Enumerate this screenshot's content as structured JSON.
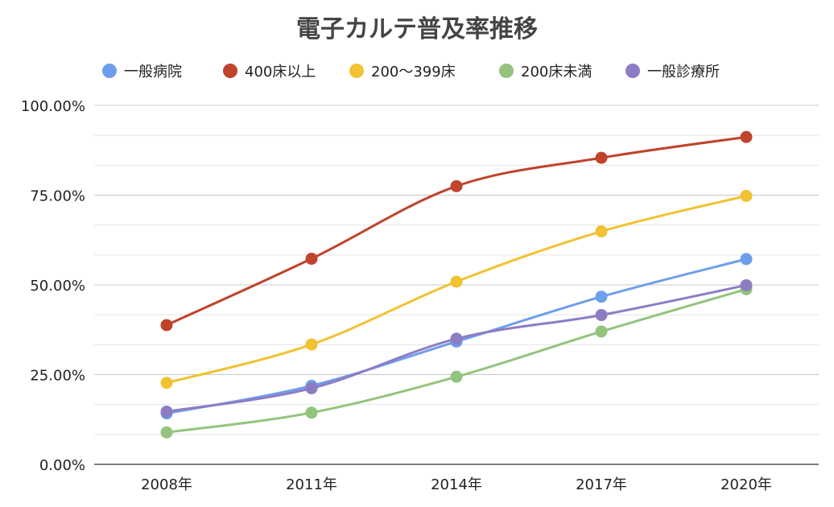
{
  "chart_data": {
    "type": "line",
    "title": "電子カルテ普及率推移",
    "categories": [
      "2008年",
      "2011年",
      "2014年",
      "2017年",
      "2020年"
    ],
    "ylim": [
      0,
      100
    ],
    "yticks": [
      0,
      25,
      50,
      75,
      100
    ],
    "ytick_labels": [
      "0.00%",
      "25.00%",
      "50.00%",
      "75.00%",
      "100.00%"
    ],
    "grid": true,
    "legend_position": "top",
    "smooth": true,
    "series": [
      {
        "name": "一般病院",
        "color": "#6d9eeb",
        "values": [
          14.2,
          21.9,
          34.2,
          46.7,
          57.2
        ]
      },
      {
        "name": "400床以上",
        "color": "#c0432b",
        "values": [
          38.8,
          57.3,
          77.5,
          85.4,
          91.2
        ]
      },
      {
        "name": "200〜399床",
        "color": "#f1c232",
        "values": [
          22.7,
          33.4,
          50.9,
          64.9,
          74.8
        ]
      },
      {
        "name": "200床未満",
        "color": "#93c47d",
        "values": [
          8.9,
          14.4,
          24.4,
          37.0,
          48.8
        ]
      },
      {
        "name": "一般診療所",
        "color": "#8e7cc3",
        "values": [
          14.7,
          21.2,
          35.0,
          41.6,
          49.9
        ]
      }
    ]
  }
}
